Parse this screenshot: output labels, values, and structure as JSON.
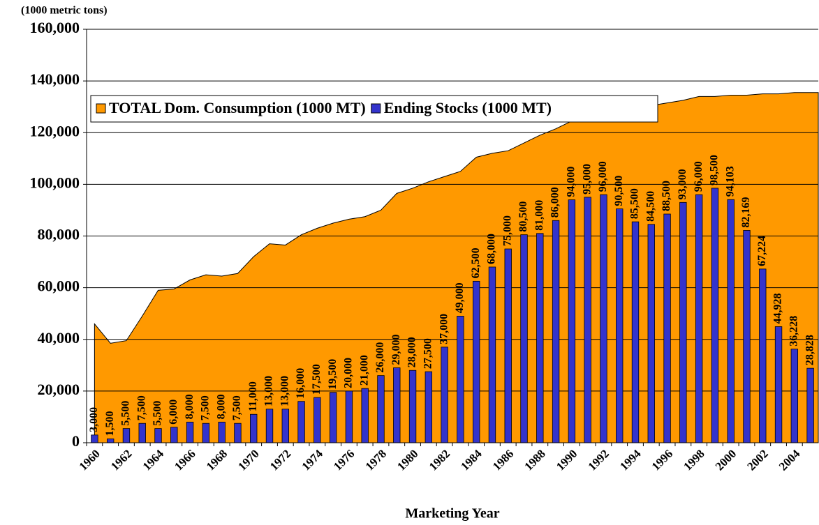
{
  "chart_data": {
    "type": "bar",
    "y_axis_label": "(1000 metric tons)",
    "x_axis_label": "Marketing Year",
    "categories": [
      "1960",
      null,
      "1962",
      null,
      "1964",
      null,
      "1966",
      null,
      "1968",
      null,
      "1970",
      null,
      "1972",
      null,
      "1974",
      null,
      "1976",
      null,
      "1978",
      null,
      "1980",
      null,
      "1982",
      null,
      "1984",
      null,
      "1986",
      null,
      "1988",
      null,
      "1990",
      null,
      "1992",
      null,
      "1994",
      null,
      "1996",
      null,
      "1998",
      null,
      "2000",
      null,
      "2002",
      null,
      "2004",
      null
    ],
    "series": [
      {
        "name": "TOTAL Dom. Consumption (1000 MT)",
        "type": "area",
        "color": "#ff9900",
        "values": [
          46000,
          38500,
          39500,
          49000,
          59000,
          59500,
          63000,
          65000,
          64500,
          65500,
          72000,
          77000,
          76500,
          80500,
          83000,
          85000,
          86500,
          87500,
          90000,
          96500,
          98500,
          101000,
          103000,
          105000,
          110500,
          112000,
          113000,
          116000,
          119000,
          121500,
          124500,
          127000,
          128500,
          129500,
          130000,
          130500,
          131500,
          132500,
          134000,
          134000,
          134500,
          134500,
          135000,
          135000,
          135500,
          135500
        ]
      },
      {
        "name": "Ending Stocks (1000 MT)",
        "type": "bar",
        "color": "#3333cc",
        "values": [
          3000,
          1500,
          5500,
          7500,
          5500,
          6000,
          8000,
          7500,
          8000,
          7500,
          11000,
          13000,
          13000,
          16000,
          17500,
          19500,
          20000,
          21000,
          26000,
          29000,
          28000,
          27500,
          37000,
          49000,
          62500,
          68000,
          75000,
          80500,
          81000,
          86000,
          94000,
          95000,
          96000,
          90500,
          85500,
          84500,
          88500,
          93000,
          96000,
          98500,
          94103,
          82169,
          67224,
          44928,
          36228,
          28828
        ],
        "value_labels": [
          "3,000",
          "1,500",
          "5,500",
          "7,500",
          "5,500",
          "6,000",
          "8,000",
          "7,500",
          "8,000",
          "7,500",
          "11,000",
          "13,000",
          "13,000",
          "16,000",
          "17,500",
          "19,500",
          "20,000",
          "21,000",
          "26,000",
          "29,000",
          "28,000",
          "27,500",
          "37,000",
          "49,000",
          "62,500",
          "68,000",
          "75,000",
          "80,500",
          "81,000",
          "86,000",
          "94,000",
          "95,000",
          "96,000",
          "90,500",
          "85,500",
          "84,500",
          "88,500",
          "93,000",
          "96,000",
          "98,500",
          "94,103",
          "82,169",
          "67,224",
          "44,928",
          "36,228",
          "28,828"
        ]
      }
    ],
    "ylim": [
      0,
      160000
    ],
    "yticks": [
      0,
      {
        "value": 20000,
        "label": "20,000"
      },
      {
        "value": 40000,
        "label": "40,000"
      },
      {
        "value": 60000,
        "label": "60,000"
      },
      {
        "value": 80000,
        "label": "80,000"
      },
      {
        "value": 100000,
        "label": "100,000"
      },
      {
        "value": 120000,
        "label": "120,000"
      },
      {
        "value": 140000,
        "label": "140,000"
      },
      {
        "value": 160000,
        "label": "160,000"
      }
    ],
    "grid": true,
    "legend": "top"
  }
}
